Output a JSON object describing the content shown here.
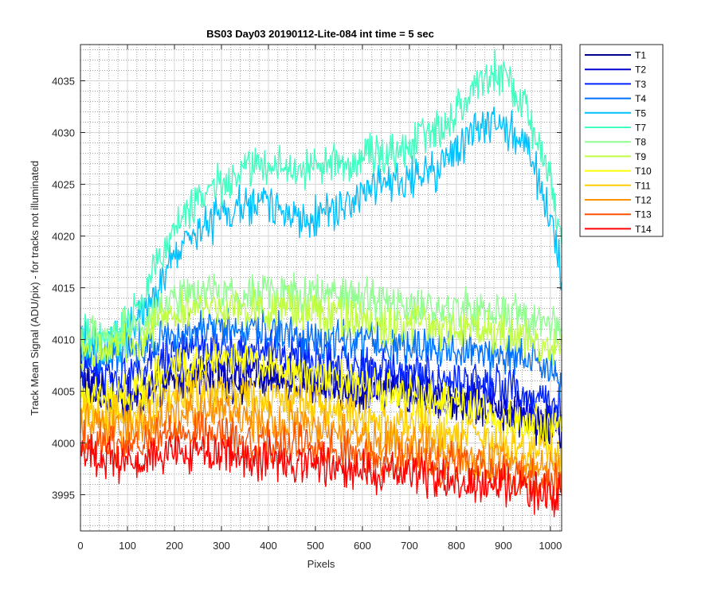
{
  "chart_data": {
    "type": "line",
    "title": "BS03 Day03 20190112-Lite-084 int time = 5 sec",
    "xlabel": "Pixels",
    "ylabel": "Track Mean Signal (ADU/pix) - for tracks not illuminated",
    "xlim": [
      0,
      1024
    ],
    "ylim": [
      3991.5,
      4038.5
    ],
    "x_ticks": [
      0,
      100,
      200,
      300,
      400,
      500,
      600,
      700,
      800,
      900,
      1000
    ],
    "y_ticks": [
      3995,
      4000,
      4005,
      4010,
      4015,
      4020,
      4025,
      4030,
      4035
    ],
    "grid": "major and minor",
    "legend_position": "outside-top-right",
    "series": [
      {
        "name": "T1",
        "color": "#00008f",
        "x": [
          0,
          50,
          100,
          150,
          200,
          250,
          300,
          350,
          400,
          450,
          500,
          550,
          600,
          650,
          700,
          750,
          800,
          850,
          900,
          950,
          1000,
          1024
        ],
        "y": [
          4006.0,
          4004.5,
          4004.0,
          4004.5,
          4006.0,
          4006.0,
          4006.0,
          4006.0,
          4006.0,
          4006.0,
          4005.5,
          4005.0,
          4005.0,
          4005.0,
          4005.0,
          4004.5,
          4004.0,
          4003.5,
          4003.0,
          4002.5,
          4001.5,
          4001.0
        ]
      },
      {
        "name": "T2",
        "color": "#0000d0",
        "x": [
          0,
          50,
          100,
          150,
          200,
          250,
          300,
          350,
          400,
          450,
          500,
          550,
          600,
          650,
          700,
          750,
          800,
          850,
          900,
          950,
          1000,
          1024
        ],
        "y": [
          4006.5,
          4005.0,
          4004.5,
          4005.5,
          4007.0,
          4007.0,
          4007.0,
          4007.0,
          4007.0,
          4006.5,
          4006.0,
          4005.5,
          4005.5,
          4005.5,
          4005.0,
          4004.5,
          4004.5,
          4004.0,
          4003.5,
          4003.0,
          4002.0,
          4001.5
        ]
      },
      {
        "name": "T3",
        "color": "#0022ff",
        "x": [
          0,
          50,
          100,
          150,
          200,
          250,
          300,
          350,
          400,
          450,
          500,
          550,
          600,
          650,
          700,
          750,
          800,
          850,
          900,
          950,
          1000,
          1024
        ],
        "y": [
          4007.5,
          4006.5,
          4006.5,
          4007.5,
          4009.0,
          4009.0,
          4009.0,
          4009.0,
          4009.0,
          4008.5,
          4008.0,
          4007.5,
          4007.5,
          4007.0,
          4007.0,
          4006.5,
          4006.0,
          4006.0,
          4005.5,
          4004.5,
          4004.0,
          4003.5
        ]
      },
      {
        "name": "T4",
        "color": "#0070ff",
        "x": [
          0,
          50,
          100,
          150,
          200,
          250,
          300,
          350,
          400,
          450,
          500,
          550,
          600,
          650,
          700,
          750,
          800,
          850,
          900,
          950,
          1000,
          1024
        ],
        "y": [
          4009.0,
          4008.5,
          4009.0,
          4010.0,
          4011.0,
          4011.0,
          4011.0,
          4011.0,
          4011.0,
          4010.5,
          4010.0,
          4010.0,
          4010.0,
          4009.5,
          4009.5,
          4009.5,
          4009.0,
          4009.0,
          4008.5,
          4008.0,
          4007.0,
          4006.0
        ]
      },
      {
        "name": "T5",
        "color": "#00c0ff",
        "x": [
          0,
          50,
          100,
          150,
          200,
          250,
          300,
          350,
          400,
          450,
          500,
          550,
          600,
          650,
          700,
          750,
          800,
          850,
          880,
          900,
          950,
          1000,
          1024
        ],
        "y": [
          4010.0,
          4009.0,
          4010.5,
          4014.0,
          4018.0,
          4020.5,
          4022.0,
          4023.0,
          4023.0,
          4022.0,
          4022.0,
          4023.0,
          4024.0,
          4025.0,
          4025.5,
          4026.0,
          4028.0,
          4030.5,
          4031.0,
          4030.5,
          4028.5,
          4022.0,
          4016.0
        ]
      },
      {
        "name": "T7",
        "color": "#40ffc0",
        "x": [
          0,
          50,
          100,
          150,
          200,
          250,
          300,
          350,
          400,
          450,
          500,
          550,
          600,
          650,
          700,
          750,
          800,
          850,
          880,
          900,
          950,
          1000,
          1024
        ],
        "y": [
          4010.5,
          4009.5,
          4011.5,
          4016.0,
          4021.0,
          4023.5,
          4025.0,
          4026.5,
          4027.0,
          4026.5,
          4026.5,
          4027.0,
          4027.5,
          4028.0,
          4029.0,
          4030.0,
          4032.0,
          4035.0,
          4036.0,
          4035.5,
          4032.0,
          4025.5,
          4019.5
        ]
      },
      {
        "name": "T8",
        "color": "#90ff90",
        "x": [
          0,
          50,
          100,
          150,
          200,
          250,
          300,
          350,
          400,
          450,
          500,
          550,
          600,
          650,
          700,
          750,
          800,
          850,
          900,
          950,
          1000,
          1024
        ],
        "y": [
          4010.0,
          4010.0,
          4011.0,
          4012.5,
          4014.0,
          4014.5,
          4014.5,
          4014.5,
          4014.5,
          4014.5,
          4014.0,
          4014.0,
          4014.0,
          4013.5,
          4013.0,
          4013.0,
          4013.0,
          4013.0,
          4012.5,
          4012.0,
          4011.5,
          4011.0
        ]
      },
      {
        "name": "T9",
        "color": "#c0ff40",
        "x": [
          0,
          50,
          100,
          150,
          200,
          250,
          300,
          350,
          400,
          450,
          500,
          550,
          600,
          650,
          700,
          750,
          800,
          850,
          900,
          950,
          1000,
          1024
        ],
        "y": [
          4009.0,
          4009.0,
          4009.5,
          4011.0,
          4012.5,
          4013.0,
          4013.0,
          4013.0,
          4013.0,
          4013.0,
          4012.5,
          4012.0,
          4012.0,
          4011.5,
          4011.5,
          4011.0,
          4011.0,
          4011.0,
          4010.5,
          4010.0,
          4009.5,
          4009.0
        ]
      },
      {
        "name": "T10",
        "color": "#ffff00",
        "x": [
          0,
          50,
          100,
          150,
          200,
          250,
          300,
          350,
          400,
          450,
          500,
          550,
          600,
          650,
          700,
          750,
          800,
          850,
          900,
          950,
          1000,
          1024
        ],
        "y": [
          4005.0,
          4004.5,
          4004.5,
          4006.0,
          4007.5,
          4008.0,
          4008.0,
          4008.0,
          4007.5,
          4007.0,
          4006.5,
          4006.0,
          4005.5,
          4005.0,
          4004.5,
          4004.0,
          4003.5,
          4003.0,
          4002.5,
          4002.0,
          4001.5,
          4001.0
        ]
      },
      {
        "name": "T11",
        "color": "#ffcc00",
        "x": [
          0,
          50,
          100,
          150,
          200,
          250,
          300,
          350,
          400,
          450,
          500,
          550,
          600,
          650,
          700,
          750,
          800,
          850,
          900,
          950,
          1000,
          1024
        ],
        "y": [
          4003.0,
          4002.5,
          4002.5,
          4003.5,
          4004.5,
          4005.0,
          4005.0,
          4004.5,
          4004.5,
          4004.0,
          4003.5,
          4003.0,
          4002.5,
          4002.0,
          4002.0,
          4001.5,
          4001.0,
          4000.5,
          4000.0,
          3999.5,
          3999.0,
          3998.5
        ]
      },
      {
        "name": "T12",
        "color": "#ff9000",
        "x": [
          0,
          50,
          100,
          150,
          200,
          250,
          300,
          350,
          400,
          450,
          500,
          550,
          600,
          650,
          700,
          750,
          800,
          850,
          900,
          950,
          1000,
          1024
        ],
        "y": [
          4002.0,
          4001.5,
          4001.0,
          4002.0,
          4003.0,
          4003.0,
          4003.0,
          4002.5,
          4002.0,
          4002.0,
          4001.5,
          4001.0,
          4000.5,
          4000.0,
          4000.0,
          3999.5,
          3999.0,
          3998.5,
          3998.5,
          3998.0,
          3997.5,
          3997.0
        ]
      },
      {
        "name": "T13",
        "color": "#ff5000",
        "x": [
          0,
          50,
          100,
          150,
          200,
          250,
          300,
          350,
          400,
          450,
          500,
          550,
          600,
          650,
          700,
          750,
          800,
          850,
          900,
          950,
          1000,
          1024
        ],
        "y": [
          4000.5,
          4000.0,
          3999.5,
          4000.5,
          4001.0,
          4001.0,
          4001.0,
          4000.5,
          4000.0,
          4000.0,
          3999.5,
          3999.0,
          3999.0,
          3998.5,
          3998.5,
          3998.0,
          3998.0,
          3997.5,
          3997.0,
          3996.5,
          3996.0,
          3996.0
        ]
      },
      {
        "name": "T14",
        "color": "#ff0000",
        "x": [
          0,
          50,
          100,
          150,
          200,
          250,
          300,
          350,
          400,
          450,
          500,
          550,
          600,
          650,
          700,
          750,
          800,
          850,
          900,
          950,
          1000,
          1024
        ],
        "y": [
          3999.0,
          3998.5,
          3998.0,
          3998.5,
          3999.0,
          3999.0,
          3999.0,
          3998.5,
          3998.5,
          3998.0,
          3998.0,
          3997.5,
          3997.5,
          3997.0,
          3997.0,
          3996.5,
          3996.5,
          3996.0,
          3996.0,
          3995.5,
          3995.0,
          3995.0
        ]
      }
    ]
  }
}
